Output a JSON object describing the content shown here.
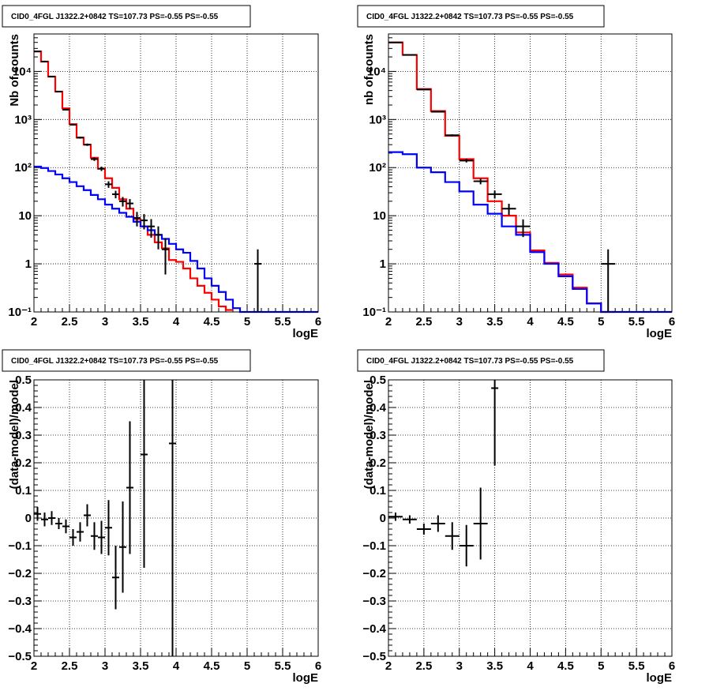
{
  "chart_data": [
    {
      "type": "step-histogram",
      "title": "CID0_4FGL J1322.2+0842 TS=107.73 PS=-0.55 PS=-0.55",
      "xlabel": "logE",
      "ylabel": "Nb of counts",
      "xlim": [
        2,
        6
      ],
      "ylim": [
        0.1,
        60000
      ],
      "ylog": true,
      "grid": true,
      "xticks": [
        "2",
        "2.5",
        "3",
        "3.5",
        "4",
        "4.5",
        "5",
        "5.5",
        "6"
      ],
      "yticks": [
        {
          "v": 0.1,
          "label": "10⁻¹"
        },
        {
          "v": 1,
          "label": "1"
        },
        {
          "v": 10,
          "label": "10"
        },
        {
          "v": 100,
          "label": "10²"
        },
        {
          "v": 1000,
          "label": "10³"
        },
        {
          "v": 10000,
          "label": "10⁴"
        }
      ],
      "series": [
        {
          "role": "total model",
          "color": "#ff0000",
          "bin_edges": [
            2,
            2.1,
            2.2,
            2.3,
            2.4,
            2.5,
            2.6,
            2.7,
            2.8,
            2.9,
            3,
            3.1,
            3.2,
            3.3,
            3.4,
            3.5,
            3.6,
            3.7,
            3.8,
            3.9,
            4,
            4.1,
            4.2,
            4.3,
            4.4,
            4.5,
            4.6,
            4.7,
            4.8
          ],
          "values": [
            26000,
            16000,
            7800,
            3800,
            1700,
            800,
            420,
            300,
            160,
            95,
            60,
            38,
            22,
            14,
            8.5,
            6,
            4,
            2.8,
            2.1,
            1.2,
            1.1,
            0.8,
            0.5,
            0.35,
            0.25,
            0.18,
            0.13,
            0.11
          ]
        },
        {
          "role": "background model",
          "color": "#0000ff",
          "bin_edges": [
            2,
            2.1,
            2.2,
            2.3,
            2.4,
            2.5,
            2.6,
            2.7,
            2.8,
            2.9,
            3,
            3.1,
            3.2,
            3.3,
            3.4,
            3.5,
            3.6,
            3.7,
            3.8,
            3.9,
            4,
            4.1,
            4.2,
            4.3,
            4.4,
            4.5,
            4.6,
            4.7,
            4.8,
            4.9,
            5,
            5.1,
            5.2,
            5.3,
            5.4,
            5.5,
            5.6,
            5.7,
            5.8,
            5.9,
            6
          ],
          "values": [
            105,
            98,
            85,
            72,
            60,
            50,
            41,
            34,
            27,
            22,
            17,
            14,
            11.5,
            9.5,
            7.5,
            6,
            5,
            4,
            3.3,
            2.6,
            2.0,
            1.7,
            1.15,
            0.8,
            0.5,
            0.35,
            0.26,
            0.18,
            0.12,
            0.1,
            0.1,
            0.1,
            0.1,
            0.1,
            0.1,
            0.1,
            0.1,
            0.1,
            0.1,
            0.1
          ]
        },
        {
          "role": "data",
          "color": "#000000",
          "points": [
            {
              "x": 2.05,
              "y": 26000,
              "xerr": 0.05,
              "yerr": 160
            },
            {
              "x": 2.15,
              "y": 16000,
              "xerr": 0.05,
              "yerr": 126
            },
            {
              "x": 2.25,
              "y": 7800,
              "xerr": 0.05,
              "yerr": 88
            },
            {
              "x": 2.35,
              "y": 3800,
              "xerr": 0.05,
              "yerr": 62
            },
            {
              "x": 2.45,
              "y": 1600,
              "xerr": 0.05,
              "yerr": 40
            },
            {
              "x": 2.55,
              "y": 780,
              "xerr": 0.05,
              "yerr": 28
            },
            {
              "x": 2.65,
              "y": 420,
              "xerr": 0.05,
              "yerr": 20
            },
            {
              "x": 2.75,
              "y": 300,
              "xerr": 0.05,
              "yerr": 17
            },
            {
              "x": 2.85,
              "y": 150,
              "xerr": 0.05,
              "yerr": 12
            },
            {
              "x": 2.95,
              "y": 95,
              "xerr": 0.05,
              "yerr": 10
            },
            {
              "x": 3.05,
              "y": 45,
              "xerr": 0.05,
              "yerr": 7
            },
            {
              "x": 3.15,
              "y": 28,
              "xerr": 0.05,
              "yerr": 5
            },
            {
              "x": 3.25,
              "y": 20,
              "xerr": 0.05,
              "yerr": 4.5
            },
            {
              "x": 3.35,
              "y": 18,
              "xerr": 0.05,
              "yerr": 4.2
            },
            {
              "x": 3.45,
              "y": 9,
              "xerr": 0.05,
              "yerr": 3
            },
            {
              "x": 3.55,
              "y": 8,
              "xerr": 0.05,
              "yerr": 2.8
            },
            {
              "x": 3.65,
              "y": 6,
              "xerr": 0.05,
              "yerr": 2.5
            },
            {
              "x": 3.75,
              "y": 4,
              "xerr": 0.05,
              "yerr": 2
            },
            {
              "x": 3.85,
              "y": 2,
              "xerr": 0.05,
              "yerr": 1.4
            },
            {
              "x": 5.15,
              "y": 1,
              "xerr": 0.05,
              "yerr": 1
            }
          ]
        }
      ]
    },
    {
      "type": "step-histogram",
      "title": "CID0_4FGL J1322.2+0842 TS=107.73 PS=-0.55 PS=-0.55",
      "xlabel": "logE",
      "ylabel": "nb of counts",
      "xlim": [
        2,
        6
      ],
      "ylim": [
        0.1,
        60000
      ],
      "ylog": true,
      "grid": true,
      "xticks": [
        "2",
        "2.5",
        "3",
        "3.5",
        "4",
        "4.5",
        "5",
        "5.5",
        "6"
      ],
      "yticks": [
        {
          "v": 0.1,
          "label": "10⁻¹"
        },
        {
          "v": 1,
          "label": "1"
        },
        {
          "v": 10,
          "label": "10"
        },
        {
          "v": 100,
          "label": "10²"
        },
        {
          "v": 1000,
          "label": "10³"
        },
        {
          "v": 10000,
          "label": "10⁴"
        }
      ],
      "series": [
        {
          "role": "total model",
          "color": "#ff0000",
          "bin_edges": [
            2,
            2.2,
            2.4,
            2.6,
            2.8,
            3,
            3.2,
            3.4,
            3.6,
            3.8,
            4,
            4.2,
            4.4,
            4.6,
            4.8,
            5,
            5.2
          ],
          "values": [
            40000,
            22000,
            4300,
            1500,
            460,
            150,
            60,
            20,
            10,
            4.5,
            1.9,
            1.05,
            0.6,
            0.32,
            0.15,
            0.1
          ]
        },
        {
          "role": "background model",
          "color": "#0000ff",
          "bin_edges": [
            2,
            2.2,
            2.4,
            2.6,
            2.8,
            3,
            3.2,
            3.4,
            3.6,
            3.8,
            4,
            4.2,
            4.4,
            4.6,
            4.8,
            5,
            5.2,
            5.4,
            5.6,
            5.8,
            6
          ],
          "values": [
            210,
            190,
            100,
            80,
            50,
            32,
            17,
            11,
            6,
            4,
            1.75,
            1.0,
            0.55,
            0.3,
            0.15,
            0.1,
            0.1,
            0.1,
            0.1,
            0.1
          ]
        },
        {
          "role": "data",
          "color": "#000000",
          "points": [
            {
              "x": 2.1,
              "y": 40000,
              "xerr": 0.1,
              "yerr": 200
            },
            {
              "x": 2.3,
              "y": 22000,
              "xerr": 0.1,
              "yerr": 150
            },
            {
              "x": 2.5,
              "y": 4200,
              "xerr": 0.1,
              "yerr": 65
            },
            {
              "x": 2.7,
              "y": 1450,
              "xerr": 0.1,
              "yerr": 38
            },
            {
              "x": 2.9,
              "y": 470,
              "xerr": 0.1,
              "yerr": 22
            },
            {
              "x": 3.1,
              "y": 140,
              "xerr": 0.1,
              "yerr": 12
            },
            {
              "x": 3.3,
              "y": 52,
              "xerr": 0.1,
              "yerr": 7
            },
            {
              "x": 3.5,
              "y": 28,
              "xerr": 0.1,
              "yerr": 5.3
            },
            {
              "x": 3.7,
              "y": 14,
              "xerr": 0.1,
              "yerr": 3.7
            },
            {
              "x": 3.9,
              "y": 6,
              "xerr": 0.1,
              "yerr": 2.4
            },
            {
              "x": 5.1,
              "y": 1,
              "xerr": 0.1,
              "yerr": 1
            }
          ]
        }
      ]
    },
    {
      "type": "scatter-errorbars",
      "title": "CID0_4FGL J1322.2+0842 TS=107.73 PS=-0.55 PS=-0.55",
      "xlabel": "logE",
      "ylabel": "(data-model)/model",
      "xlim": [
        2,
        6
      ],
      "ylim": [
        -0.5,
        0.5
      ],
      "ylog": false,
      "grid": true,
      "xticks": [
        "2",
        "2.5",
        "3",
        "3.5",
        "4",
        "4.5",
        "5",
        "5.5",
        "6"
      ],
      "yticks": [
        {
          "v": -0.5,
          "label": "−0.5"
        },
        {
          "v": -0.4,
          "label": "−0.4"
        },
        {
          "v": -0.3,
          "label": "−0.3"
        },
        {
          "v": -0.2,
          "label": "−0.2"
        },
        {
          "v": -0.1,
          "label": "−0.1"
        },
        {
          "v": 0,
          "label": "0"
        },
        {
          "v": 0.1,
          "label": "0.1"
        },
        {
          "v": 0.2,
          "label": "0.2"
        },
        {
          "v": 0.3,
          "label": "0.3"
        },
        {
          "v": 0.4,
          "label": "0.4"
        },
        {
          "v": 0.5,
          "label": "0.5"
        }
      ],
      "series": [
        {
          "role": "residuals",
          "color": "#000000",
          "points": [
            {
              "x": 2.05,
              "y": 0.015,
              "xerr": 0.05,
              "yerr": 0.025
            },
            {
              "x": 2.15,
              "y": -0.005,
              "xerr": 0.05,
              "yerr": 0.025
            },
            {
              "x": 2.25,
              "y": 0.0,
              "xerr": 0.05,
              "yerr": 0.025
            },
            {
              "x": 2.35,
              "y": -0.02,
              "xerr": 0.05,
              "yerr": 0.02
            },
            {
              "x": 2.45,
              "y": -0.03,
              "xerr": 0.05,
              "yerr": 0.025
            },
            {
              "x": 2.55,
              "y": -0.07,
              "xerr": 0.05,
              "yerr": 0.03
            },
            {
              "x": 2.65,
              "y": -0.05,
              "xerr": 0.05,
              "yerr": 0.035
            },
            {
              "x": 2.75,
              "y": 0.01,
              "xerr": 0.05,
              "yerr": 0.04
            },
            {
              "x": 2.85,
              "y": -0.065,
              "xerr": 0.05,
              "yerr": 0.05
            },
            {
              "x": 2.95,
              "y": -0.07,
              "xerr": 0.05,
              "yerr": 0.06
            },
            {
              "x": 3.05,
              "y": -0.035,
              "xerr": 0.05,
              "yerr": 0.1
            },
            {
              "x": 3.15,
              "y": -0.215,
              "xerr": 0.05,
              "yerr": 0.115
            },
            {
              "x": 3.25,
              "y": -0.105,
              "xerr": 0.05,
              "yerr": 0.165
            },
            {
              "x": 3.35,
              "y": 0.11,
              "xerr": 0.05,
              "yerr": 0.24
            },
            {
              "x": 3.55,
              "y": 0.23,
              "xerr": 0.05,
              "yerr": 0.41
            },
            {
              "x": 3.95,
              "y": 0.27,
              "xerr": 0.05,
              "yerr": 0.8
            }
          ]
        }
      ]
    },
    {
      "type": "scatter-errorbars",
      "title": "CID0_4FGL J1322.2+0842 TS=107.73 PS=-0.55 PS=-0.55",
      "xlabel": "logE",
      "ylabel": "(data-model)/model",
      "xlim": [
        2,
        6
      ],
      "ylim": [
        -0.5,
        0.5
      ],
      "ylog": false,
      "grid": true,
      "xticks": [
        "2",
        "2.5",
        "3",
        "3.5",
        "4",
        "4.5",
        "5",
        "5.5",
        "6"
      ],
      "yticks": [
        {
          "v": -0.5,
          "label": "−0.5"
        },
        {
          "v": -0.4,
          "label": "−0.4"
        },
        {
          "v": -0.3,
          "label": "−0.3"
        },
        {
          "v": -0.2,
          "label": "−0.2"
        },
        {
          "v": -0.1,
          "label": "−0.1"
        },
        {
          "v": 0,
          "label": "0"
        },
        {
          "v": 0.1,
          "label": "0.1"
        },
        {
          "v": 0.2,
          "label": "0.2"
        },
        {
          "v": 0.3,
          "label": "0.3"
        },
        {
          "v": 0.4,
          "label": "0.4"
        },
        {
          "v": 0.5,
          "label": "0.5"
        }
      ],
      "series": [
        {
          "role": "residuals",
          "color": "#000000",
          "points": [
            {
              "x": 2.1,
              "y": 0.005,
              "xerr": 0.1,
              "yerr": 0.015
            },
            {
              "x": 2.3,
              "y": -0.005,
              "xerr": 0.1,
              "yerr": 0.015
            },
            {
              "x": 2.5,
              "y": -0.04,
              "xerr": 0.1,
              "yerr": 0.02
            },
            {
              "x": 2.7,
              "y": -0.02,
              "xerr": 0.1,
              "yerr": 0.03
            },
            {
              "x": 2.9,
              "y": -0.065,
              "xerr": 0.1,
              "yerr": 0.05
            },
            {
              "x": 3.1,
              "y": -0.1,
              "xerr": 0.1,
              "yerr": 0.075
            },
            {
              "x": 3.3,
              "y": -0.02,
              "xerr": 0.1,
              "yerr": 0.13
            },
            {
              "x": 3.5,
              "y": 0.47,
              "xerr": 0.05,
              "yerr": 0.28
            }
          ]
        }
      ]
    }
  ]
}
